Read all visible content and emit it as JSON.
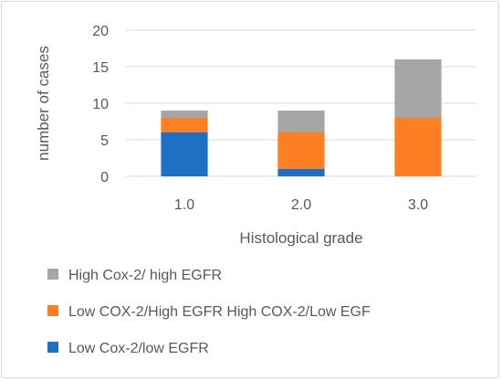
{
  "chart_data": {
    "type": "bar",
    "stacked": true,
    "categories": [
      "1.0",
      "2.0",
      "3.0"
    ],
    "series": [
      {
        "name": "Low Cox-2/low EGFR",
        "color": "#1f6fc5",
        "values": [
          6,
          1,
          0
        ]
      },
      {
        "name": "Low COX-2/High EGFR High COX-2/Low EGF",
        "color": "#fd7f23",
        "values": [
          2,
          5,
          8
        ]
      },
      {
        "name": "High Cox-2/ high EGFR",
        "color": "#a6a6a6",
        "values": [
          1,
          3,
          8
        ]
      }
    ],
    "title": "",
    "xlabel": "Histological grade",
    "ylabel": "number of cases",
    "ylim": [
      0,
      20
    ],
    "yticks": [
      "0",
      "5",
      "10",
      "15",
      "20"
    ],
    "grid": true,
    "legend_position": "bottom",
    "legend_order": [
      "High Cox-2/ high EGFR",
      "Low COX-2/High EGFR High COX-2/Low EGF",
      "Low Cox-2/low EGFR"
    ]
  }
}
